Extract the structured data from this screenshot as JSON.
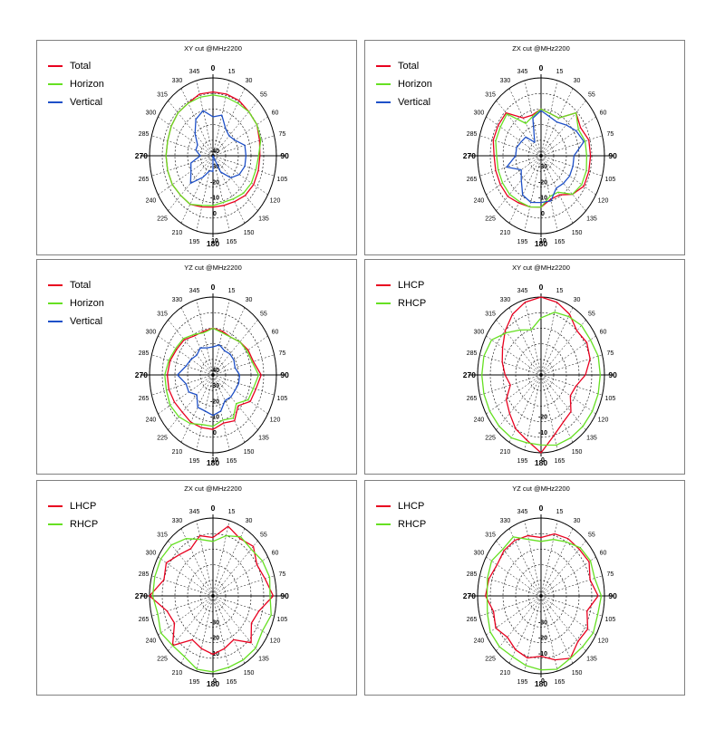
{
  "colors": {
    "Total": "#e8001f",
    "Horizon": "#66e022",
    "Vertical": "#1e50c8",
    "LHCP": "#e8001f",
    "RHCP": "#66e022"
  },
  "chart_data": [
    {
      "type": "polar-line",
      "title": "XY cut @MHz2200",
      "angle_labels": [
        "0",
        "15",
        "30",
        "55",
        "60",
        "75",
        "90",
        "105",
        "120",
        "135",
        "150",
        "165",
        "180",
        "195",
        "210",
        "225",
        "240",
        "265",
        "270",
        "285",
        "300",
        "315",
        "330",
        "345"
      ],
      "radial_labels": [
        "-40",
        "-30",
        "-20",
        "-10",
        "0",
        "10"
      ],
      "rlim": [
        -40,
        10
      ],
      "series": [
        {
          "name": "Total",
          "values": [
            1,
            1,
            1,
            0,
            0,
            -2,
            -3,
            -3,
            -3,
            -4,
            -6,
            -7,
            -7,
            -6,
            -4,
            -4,
            -3,
            -3,
            -3,
            -3,
            -2,
            -1,
            -1,
            1
          ]
        },
        {
          "name": "Horizon",
          "values": [
            -1,
            -1,
            -1,
            0,
            0,
            -1,
            -4,
            -5,
            -5,
            -6,
            -8,
            -9,
            -8,
            -7,
            -4,
            -4,
            -3,
            -3,
            -3,
            -3,
            -2,
            -1,
            -1,
            -1
          ]
        },
        {
          "name": "Vertical",
          "values": [
            -15,
            -13,
            -20,
            -22,
            -20,
            -14,
            -14,
            -14,
            -16,
            -20,
            -28,
            -40,
            -30,
            -30,
            -24,
            -15,
            -20,
            -22,
            -30,
            -26,
            -26,
            -20,
            -13,
            -10
          ]
        }
      ]
    },
    {
      "type": "polar-line",
      "title": "ZX cut @MHz2200",
      "angle_labels": [
        "0",
        "15",
        "30",
        "55",
        "60",
        "75",
        "90",
        "105",
        "120",
        "135",
        "150",
        "165",
        "180",
        "195",
        "210",
        "225",
        "240",
        "265",
        "270",
        "285",
        "300",
        "315",
        "330",
        "345"
      ],
      "radial_labels": [
        "-30",
        "-20",
        "-10",
        "0",
        "10"
      ],
      "rlim": [
        -40,
        10
      ],
      "series": [
        {
          "name": "Total",
          "values": [
            -10,
            -12,
            -12,
            -1,
            -4,
            -1,
            -1,
            -1,
            -1,
            -5,
            -11,
            -11,
            -7,
            -6,
            -5,
            -3,
            -3,
            -3,
            -3,
            -1,
            -1,
            -1,
            -12,
            -13
          ]
        },
        {
          "name": "Horizon",
          "values": [
            -10,
            -12,
            -12,
            -1,
            -6,
            -4,
            -4,
            -3,
            -3,
            -5,
            -13,
            -13,
            -7,
            -6,
            -6,
            -5,
            -5,
            -5,
            -5,
            -3,
            -3,
            -2,
            -16,
            -14
          ]
        },
        {
          "name": "Vertical",
          "values": [
            -11,
            -14,
            -15,
            -12,
            -8,
            -5,
            -14,
            -14,
            -14,
            -15,
            -16,
            -10,
            -10,
            -9,
            -11,
            -18,
            -22,
            -12,
            -20,
            -20,
            -22,
            -23,
            -30,
            -15
          ]
        }
      ]
    },
    {
      "type": "polar-line",
      "title": "YZ cut @MHz2200",
      "angle_labels": [
        "0",
        "15",
        "30",
        "55",
        "60",
        "75",
        "90",
        "105",
        "120",
        "135",
        "150",
        "165",
        "180",
        "195",
        "210",
        "225",
        "240",
        "265",
        "270",
        "285",
        "300",
        "315",
        "330",
        "345"
      ],
      "radial_labels": [
        "-40",
        "-30",
        "-20",
        "-10",
        "0",
        "10"
      ],
      "rlim": [
        -40,
        10
      ],
      "series": [
        {
          "name": "Total",
          "values": [
            -10,
            -11,
            -12,
            -10,
            -8,
            -7,
            -2,
            -5,
            -6,
            -12,
            -6,
            -8,
            -5,
            -5,
            -5,
            -6,
            -5,
            -4,
            -4,
            -5,
            -7,
            -8,
            -11,
            -11
          ]
        },
        {
          "name": "Horizon",
          "values": [
            -10,
            -12,
            -12,
            -10,
            -9,
            -8,
            -4,
            -7,
            -8,
            -14,
            -8,
            -10,
            -7,
            -7,
            -4,
            -2,
            -1,
            -2,
            -2,
            -4,
            -6,
            -7,
            -10,
            -12
          ]
        },
        {
          "name": "Vertical",
          "values": [
            -22,
            -20,
            -22,
            -21,
            -21,
            -22,
            -19,
            -19,
            -20,
            -20,
            -21,
            -16,
            -14,
            -16,
            -16,
            -22,
            -18,
            -18,
            -12,
            -18,
            -20,
            -22,
            -20,
            -22
          ]
        }
      ]
    },
    {
      "type": "polar-line",
      "title": "XY cut @MHz2200",
      "angle_labels": [
        "0",
        "15",
        "30",
        "55",
        "60",
        "75",
        "90",
        "105",
        "120",
        "135",
        "150",
        "165",
        "180",
        "195",
        "210",
        "225",
        "240",
        "265",
        "270",
        "285",
        "300",
        "315",
        "330",
        "345"
      ],
      "radial_labels": [
        "-20",
        "-10",
        "0"
      ],
      "rlim": [
        -30,
        0
      ],
      "series": [
        {
          "name": "LHCP",
          "values": [
            0,
            -1,
            -3,
            -6,
            -5,
            -6,
            -9,
            -13,
            -14,
            -10,
            -9,
            -6,
            0,
            -4,
            -6,
            -9,
            -11,
            -15,
            -13,
            -11,
            -9,
            -6,
            -3,
            -1
          ]
        },
        {
          "name": "RHCP",
          "values": [
            -8,
            -5,
            -4,
            -3,
            -3,
            -2,
            -2,
            -2,
            -2,
            -2,
            -2,
            -2,
            -3,
            -3,
            -2,
            -2,
            -2,
            -2,
            -2,
            -2,
            -3,
            -7,
            -10,
            -12
          ]
        }
      ]
    },
    {
      "type": "polar-line",
      "title": "ZX cut @MHz2200",
      "angle_labels": [
        "0",
        "15",
        "30",
        "55",
        "60",
        "75",
        "90",
        "105",
        "120",
        "135",
        "150",
        "165",
        "180",
        "195",
        "210",
        "225",
        "240",
        "265",
        "270",
        "285",
        "300",
        "315",
        "330",
        "345"
      ],
      "radial_labels": [
        "-30",
        "-20",
        "-10",
        "0"
      ],
      "rlim": [
        -40,
        0
      ],
      "series": [
        {
          "name": "LHCP",
          "values": [
            -10,
            -3,
            -6,
            -4,
            -8,
            -6,
            -2,
            -10,
            -12,
            -6,
            -14,
            -12,
            -10,
            -12,
            -14,
            -4,
            -12,
            -10,
            0,
            -8,
            -6,
            -10,
            -12,
            -8
          ]
        },
        {
          "name": "RHCP",
          "values": [
            -12,
            -8,
            -5,
            -6,
            -4,
            -3,
            -4,
            -2,
            -4,
            -2,
            -2,
            -2,
            -1,
            -1,
            -4,
            -4,
            -2,
            -4,
            -2,
            -2,
            -2,
            -3,
            -6,
            -10
          ]
        }
      ]
    },
    {
      "type": "polar-line",
      "title": "YZ cut @MHz2200",
      "angle_labels": [
        "0",
        "15",
        "30",
        "55",
        "60",
        "75",
        "90",
        "105",
        "120",
        "135",
        "150",
        "165",
        "180",
        "195",
        "210",
        "225",
        "240",
        "265",
        "270",
        "285",
        "300",
        "315",
        "330",
        "345"
      ],
      "radial_labels": [
        "-30",
        "-20",
        "-10",
        "0"
      ],
      "rlim": [
        -40,
        0
      ],
      "series": [
        {
          "name": "LHCP",
          "values": [
            -10,
            -7,
            -6,
            -6,
            -5,
            -8,
            -4,
            -10,
            -6,
            -7,
            -3,
            -6,
            -9,
            -7,
            -8,
            -10,
            -7,
            -9,
            -5,
            -6,
            -8,
            -7,
            -7,
            -8
          ]
        },
        {
          "name": "RHCP",
          "values": [
            -12,
            -10,
            -8,
            -5,
            -4,
            -5,
            -2,
            -3,
            -2,
            -3,
            -3,
            -1,
            -2,
            -3,
            -4,
            -3,
            -3,
            -5,
            -6,
            -5,
            -4,
            -6,
            -5,
            -10
          ]
        }
      ]
    }
  ]
}
